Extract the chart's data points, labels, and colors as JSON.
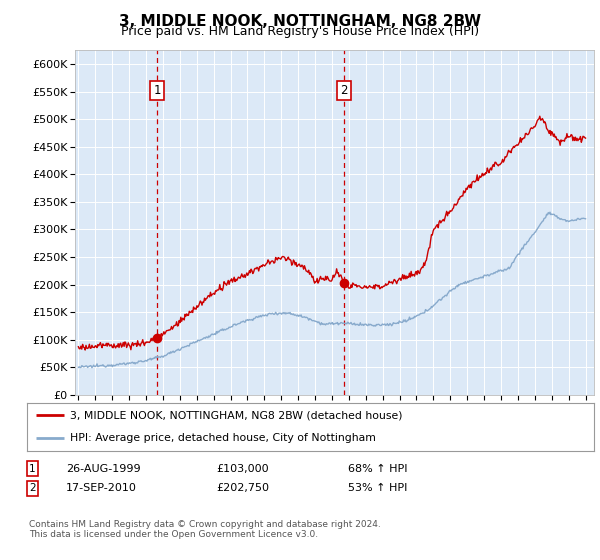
{
  "title": "3, MIDDLE NOOK, NOTTINGHAM, NG8 2BW",
  "subtitle": "Price paid vs. HM Land Registry's House Price Index (HPI)",
  "title_fontsize": 11,
  "subtitle_fontsize": 9,
  "bg_color": "#dce9f7",
  "ylim": [
    0,
    625000
  ],
  "yticks": [
    0,
    50000,
    100000,
    150000,
    200000,
    250000,
    300000,
    350000,
    400000,
    450000,
    500000,
    550000,
    600000
  ],
  "xlim_start": 1994.8,
  "xlim_end": 2025.5,
  "sale1_x": 1999.65,
  "sale1_y": 103000,
  "sale2_x": 2010.71,
  "sale2_y": 202750,
  "sale1_date": "26-AUG-1999",
  "sale1_price": "£103,000",
  "sale1_hpi": "68% ↑ HPI",
  "sale2_date": "17-SEP-2010",
  "sale2_price": "£202,750",
  "sale2_hpi": "53% ↑ HPI",
  "legend_line1": "3, MIDDLE NOOK, NOTTINGHAM, NG8 2BW (detached house)",
  "legend_line2": "HPI: Average price, detached house, City of Nottingham",
  "footnote": "Contains HM Land Registry data © Crown copyright and database right 2024.\nThis data is licensed under the Open Government Licence v3.0.",
  "red_color": "#cc0000",
  "blue_color": "#88aacc"
}
